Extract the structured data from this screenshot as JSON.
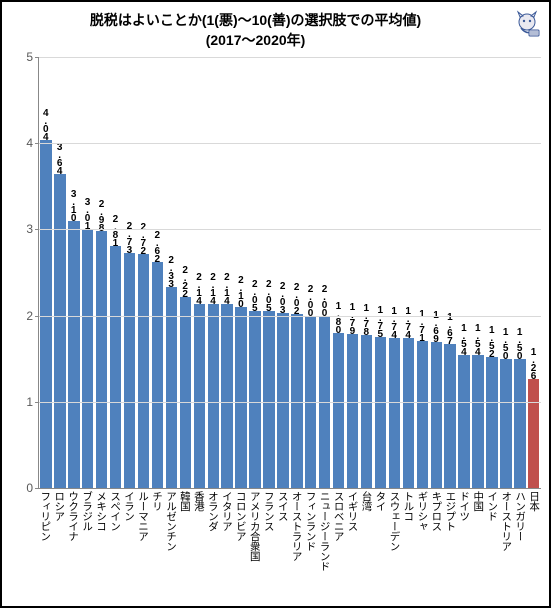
{
  "chart": {
    "type": "bar",
    "title_line1": "脱税はよいことか(1(悪)～10(善)の選択肢での平均値)",
    "title_line2": "(2017～2020年)",
    "title_fontsize": 14,
    "background_color": "#ffffff",
    "border_color": "#000000",
    "grid_color": "#d9d9d9",
    "axis_color": "#888888",
    "y": {
      "min": 0,
      "max": 5,
      "ticks": [
        0,
        1,
        2,
        3,
        4,
        5
      ]
    },
    "default_bar_color": "#4f81bd",
    "highlight_bar_color": "#c0504d",
    "value_label_fontsize": 10,
    "x_label_fontsize": 10.5,
    "bars": [
      {
        "label": "フィリピン",
        "value": 4.04
      },
      {
        "label": "ロシア",
        "value": 3.64
      },
      {
        "label": "ウクライナ",
        "value": 3.1
      },
      {
        "label": "ブラジル",
        "value": 3.01
      },
      {
        "label": "メキシコ",
        "value": 2.98
      },
      {
        "label": "スペイン",
        "value": 2.81
      },
      {
        "label": "イラン",
        "value": 2.73
      },
      {
        "label": "ルーマニア",
        "value": 2.72
      },
      {
        "label": "チリ",
        "value": 2.62
      },
      {
        "label": "アルゼンチン",
        "value": 2.33
      },
      {
        "label": "韓国",
        "value": 2.22
      },
      {
        "label": "香港",
        "value": 2.14
      },
      {
        "label": "オランダ",
        "value": 2.14
      },
      {
        "label": "イタリア",
        "value": 2.14
      },
      {
        "label": "コロンビア",
        "value": 2.1
      },
      {
        "label": "アメリカ合衆国",
        "value": 2.05
      },
      {
        "label": "フランス",
        "value": 2.05
      },
      {
        "label": "スイス",
        "value": 2.03
      },
      {
        "label": "オーストラリア",
        "value": 2.02
      },
      {
        "label": "フィンランド",
        "value": 2.0
      },
      {
        "label": "ニュージーランド",
        "value": 2.0
      },
      {
        "label": "スロベニア",
        "value": 1.8
      },
      {
        "label": "イギリス",
        "value": 1.79
      },
      {
        "label": "台湾",
        "value": 1.78
      },
      {
        "label": "タイ",
        "value": 1.75
      },
      {
        "label": "スウェーデン",
        "value": 1.74
      },
      {
        "label": "トルコ",
        "value": 1.74
      },
      {
        "label": "ギリシャ",
        "value": 1.71
      },
      {
        "label": "キプロス",
        "value": 1.69
      },
      {
        "label": "エジプト",
        "value": 1.67
      },
      {
        "label": "ドイツ",
        "value": 1.54
      },
      {
        "label": "中国",
        "value": 1.54
      },
      {
        "label": "インド",
        "value": 1.52
      },
      {
        "label": "オーストリア",
        "value": 1.5
      },
      {
        "label": "ハンガリー",
        "value": 1.5
      },
      {
        "label": "日本",
        "value": 1.26,
        "highlight": true
      }
    ]
  }
}
